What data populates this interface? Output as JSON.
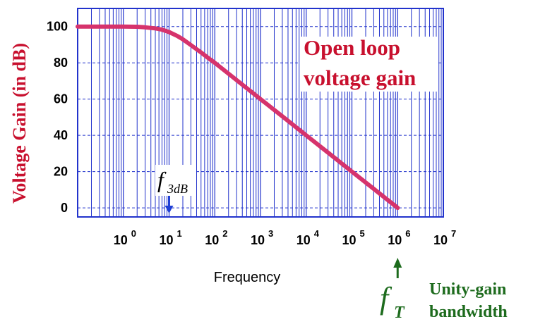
{
  "chart_data": {
    "type": "line",
    "xscale": "log",
    "xlabel": "Frequency",
    "ylabel": "Voltage Gain (in dB)",
    "xlim": [
      0.1,
      10000000
    ],
    "ylim": [
      -5,
      110
    ],
    "x_ticks": [
      {
        "base": "10",
        "exp": "0",
        "value": 1
      },
      {
        "base": "10",
        "exp": "1",
        "value": 10
      },
      {
        "base": "10",
        "exp": "2",
        "value": 100
      },
      {
        "base": "10",
        "exp": "3",
        "value": 1000
      },
      {
        "base": "10",
        "exp": "4",
        "value": 10000
      },
      {
        "base": "10",
        "exp": "5",
        "value": 100000
      },
      {
        "base": "10",
        "exp": "6",
        "value": 1000000
      },
      {
        "base": "10",
        "exp": "7",
        "value": 10000000
      }
    ],
    "y_ticks": [
      "0",
      "20",
      "40",
      "60",
      "80",
      "100"
    ],
    "grid": true,
    "series": [
      {
        "color": "#d6336c",
        "x": [
          0.1,
          0.3,
          1,
          2,
          3,
          5,
          7,
          10,
          15,
          20,
          30,
          50,
          70,
          100,
          300,
          1000,
          3000,
          10000,
          30000,
          100000,
          300000,
          1000000
        ],
        "y": [
          100,
          100,
          100,
          99.9,
          99.6,
          99.0,
          98.3,
          97.0,
          94.9,
          93.0,
          89.8,
          85.7,
          82.9,
          80.0,
          70.5,
          60.0,
          50.5,
          40.0,
          30.5,
          20.0,
          10.5,
          0
        ]
      }
    ],
    "annotations": {
      "curve_label_line1": "Open loop",
      "curve_label_line2": "voltage gain",
      "f3db_main": "f",
      "f3db_sub": "3dB",
      "f3db_x": 10,
      "ft_main": "f",
      "ft_sub": "T",
      "ft_x": 1000000,
      "ft_desc_line1": "Unity-gain",
      "ft_desc_line2": "bandwidth"
    }
  },
  "colors": {
    "grid": "#2233cc",
    "curve": "#d6336c",
    "label_red": "#c8102e",
    "green": "#1d6b1d",
    "arrow_blue": "#1f3fd6"
  }
}
